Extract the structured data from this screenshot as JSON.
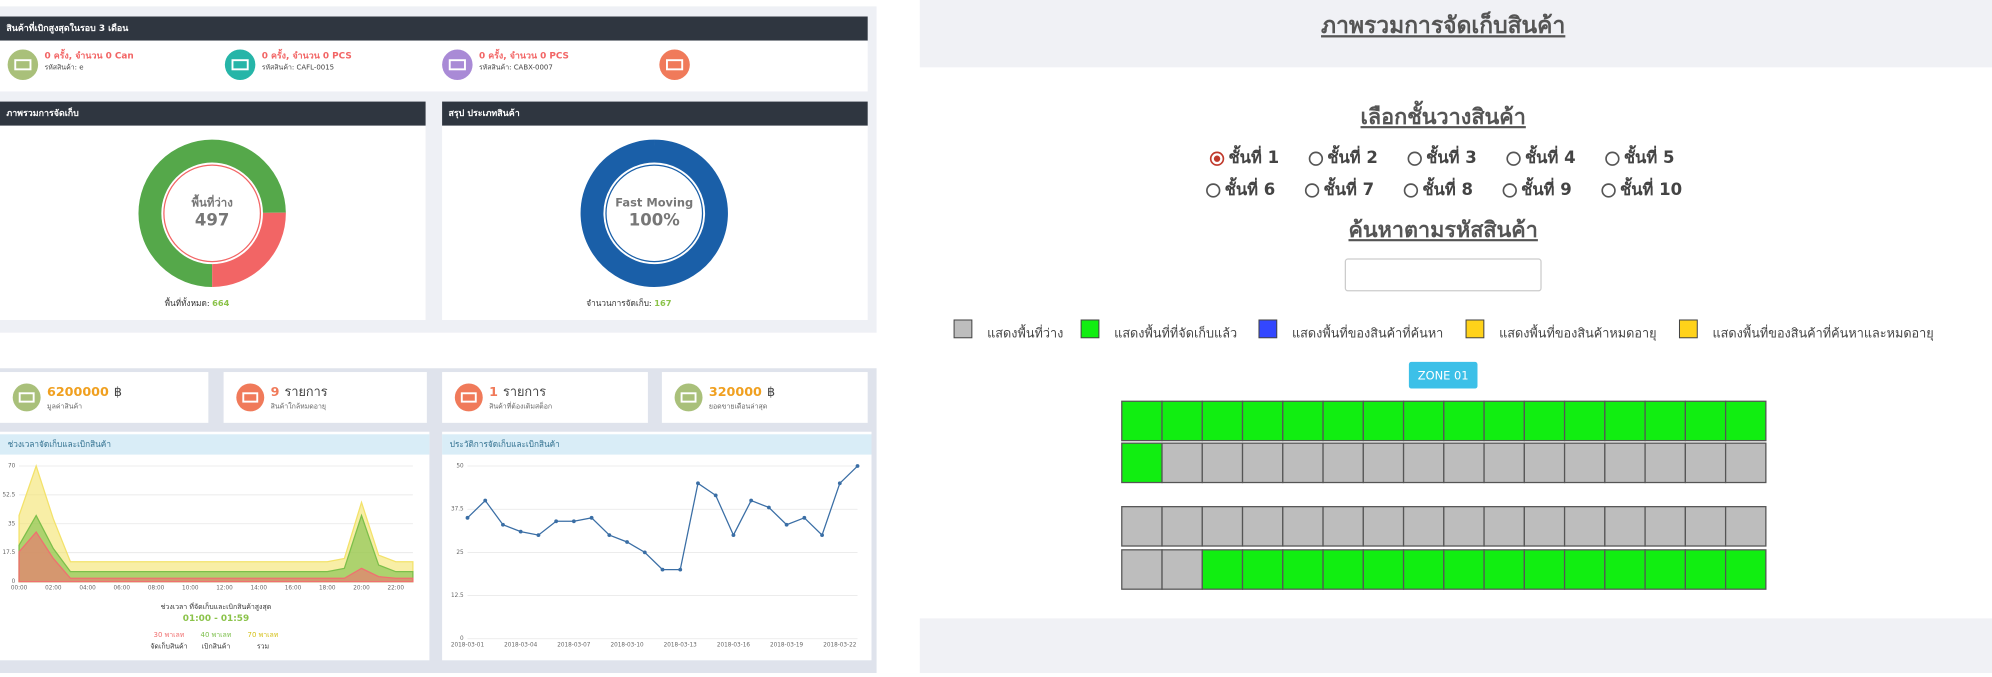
{
  "top_items": {
    "title": "สินค้าที่เบิกสูงสุดในรอบ 3 เดือน",
    "items": [
      {
        "line1": "0 ครั้ง, จำนวน 0 Can",
        "line2": "รหัสสินค้า: e",
        "color": "#a9c07a"
      },
      {
        "line1": "0 ครั้ง, จำนวน 0 PCS",
        "line2": "รหัสสินค้า: CAFL-0015",
        "color": "#26b5a8"
      },
      {
        "line1": "0 ครั้ง, จำนวน 0 PCS",
        "line2": "รหัสสินค้า: CABX-0007",
        "color": "#a98ad6"
      },
      {
        "color": "#f07a5a"
      }
    ]
  },
  "stats": [
    {
      "value": "6200000",
      "unit": "฿",
      "label": "มูลค่าสินค้า",
      "color": "#a9c07a",
      "value_color": "#f0a020"
    },
    {
      "value": "9",
      "unit": "รายการ",
      "label": "สินค้าใกล้หมดอายุ",
      "color": "#f07a5a",
      "value_color": "#f07a5a"
    },
    {
      "value": "1",
      "unit": "รายการ",
      "label": "สินค้าที่ต้องเติมสต็อก",
      "color": "#f07a5a",
      "value_color": "#f07a5a"
    },
    {
      "value": "320000",
      "unit": "฿",
      "label": "ยอดขายเดือนล่าสุด",
      "color": "#a9c07a",
      "value_color": "#f0a020"
    }
  ],
  "chart_data": [
    {
      "type": "pie",
      "title": "ภาพรวมการจัดเก็บ",
      "center_label": "พื้นที่ว่าง",
      "values": [
        497,
        167
      ],
      "colors": [
        "#55a84a",
        "#f26565"
      ],
      "footer_label": "พื้นที่ทั้งหมด:",
      "footer_value": 664
    },
    {
      "type": "pie",
      "title": "สรุป ประเภทสินค้า",
      "center_label": "Fast Moving",
      "values": [
        100
      ],
      "value_labels": [
        "100%"
      ],
      "colors": [
        "#1a5fa8"
      ],
      "footer_label": "จำนวนการจัดเก็บ:",
      "footer_value": 167
    },
    {
      "type": "area",
      "title": "ช่วงเวลาจัดเก็บและเบิกสินค้า",
      "categories": [
        "00:00",
        null,
        "02:00",
        null,
        "04:00",
        null,
        "06:00",
        null,
        "08:00",
        null,
        "10:00",
        null,
        "12:00",
        null,
        "14:00",
        null,
        "16:00",
        null,
        "18:00",
        null,
        "20:00",
        null,
        "22:00",
        null
      ],
      "ylim": [
        0,
        70
      ],
      "yticks": [
        0,
        17.5,
        35,
        52.5,
        70
      ],
      "series": [
        {
          "name": "จัดเก็บสินค้า",
          "total_label": "30 พาเลท",
          "color": "#f07070",
          "values": [
            18,
            30,
            14,
            2,
            2,
            2,
            2,
            2,
            2,
            2,
            2,
            2,
            2,
            2,
            2,
            2,
            2,
            2,
            2,
            2,
            8,
            3,
            2,
            2
          ]
        },
        {
          "name": "เบิกสินค้า",
          "total_label": "40 พาเลท",
          "color": "#7cbf4a",
          "values": [
            22,
            40,
            20,
            6,
            6,
            6,
            6,
            6,
            6,
            6,
            6,
            6,
            6,
            6,
            6,
            6,
            6,
            6,
            6,
            8,
            40,
            10,
            6,
            6
          ]
        },
        {
          "name": "รวม",
          "total_label": "70 พาเลท",
          "color": "#f3e26a",
          "values": [
            40,
            70,
            38,
            12,
            12,
            12,
            12,
            12,
            12,
            12,
            12,
            12,
            12,
            12,
            12,
            12,
            12,
            12,
            12,
            14,
            48,
            16,
            12,
            12
          ]
        }
      ],
      "peak_label": "ช่วงเวลา ที่จัดเก็บและเบิกสินค้าสูงสุด",
      "peak_time": "01:00 - 01:59"
    },
    {
      "type": "line",
      "title": "ประวัติการจัดเก็บและเบิกสินค้า",
      "categories": [
        "2018-03-01",
        null,
        null,
        "2018-03-04",
        null,
        null,
        "2018-03-07",
        null,
        null,
        "2018-03-10",
        null,
        null,
        "2018-03-13",
        null,
        null,
        "2018-03-16",
        null,
        null,
        "2018-03-19",
        null,
        null,
        "2018-03-22",
        null
      ],
      "ylim": [
        0,
        50
      ],
      "yticks": [
        0,
        12.5,
        25,
        37.5,
        50
      ],
      "color": "#3a6ea5",
      "values": [
        35,
        40,
        33,
        31,
        30,
        34,
        34,
        35,
        30,
        28,
        25,
        20,
        20,
        45,
        41.5,
        30,
        40,
        38,
        33,
        35,
        30,
        45,
        50
      ]
    }
  ],
  "storage": {
    "title": "ภาพรวมการจัดเก็บสินค้า",
    "shelf_title": "เลือกชั้นวางสินค้า",
    "shelves": [
      "ชั้นที่ 1",
      "ชั้นที่ 2",
      "ชั้นที่ 3",
      "ชั้นที่ 4",
      "ชั้นที่ 5",
      "ชั้นที่ 6",
      "ชั้นที่ 7",
      "ชั้นที่ 8",
      "ชั้นที่ 9",
      "ชั้นที่ 10"
    ],
    "selected": 0,
    "search_title": "ค้นหาตามรหัสสินค้า",
    "legend": [
      {
        "label": "แสดงพื้นที่ว่าง",
        "color": "#bdbdbd"
      },
      {
        "label": "แสดงพื้นที่ที่จัดเก็บแล้ว",
        "color": "#11ee11"
      },
      {
        "label": "แสดงพื้นที่ของสินค้าที่ค้นหา",
        "color": "#3347ff"
      },
      {
        "label": "แสดงพื้นที่ของสินค้าหมดอายุ",
        "color": "#ffd21a"
      },
      {
        "label": "แสดงพื้นที่ของสินค้าที่ค้นหาและหมดอายุ",
        "color": "#ffd21a"
      }
    ],
    "zone": "ZONE 01",
    "rows": [
      [
        1,
        1,
        1,
        1,
        1,
        1,
        1,
        1,
        1,
        1,
        1,
        1,
        1,
        1,
        1,
        1
      ],
      [
        1,
        0,
        0,
        0,
        0,
        0,
        0,
        0,
        0,
        0,
        0,
        0,
        0,
        0,
        0,
        0
      ],
      [
        0,
        0,
        0,
        0,
        0,
        0,
        0,
        0,
        0,
        0,
        0,
        0,
        0,
        0,
        0,
        0
      ],
      [
        0,
        0,
        1,
        1,
        1,
        1,
        1,
        1,
        1,
        1,
        1,
        1,
        1,
        1,
        1,
        1
      ]
    ]
  }
}
